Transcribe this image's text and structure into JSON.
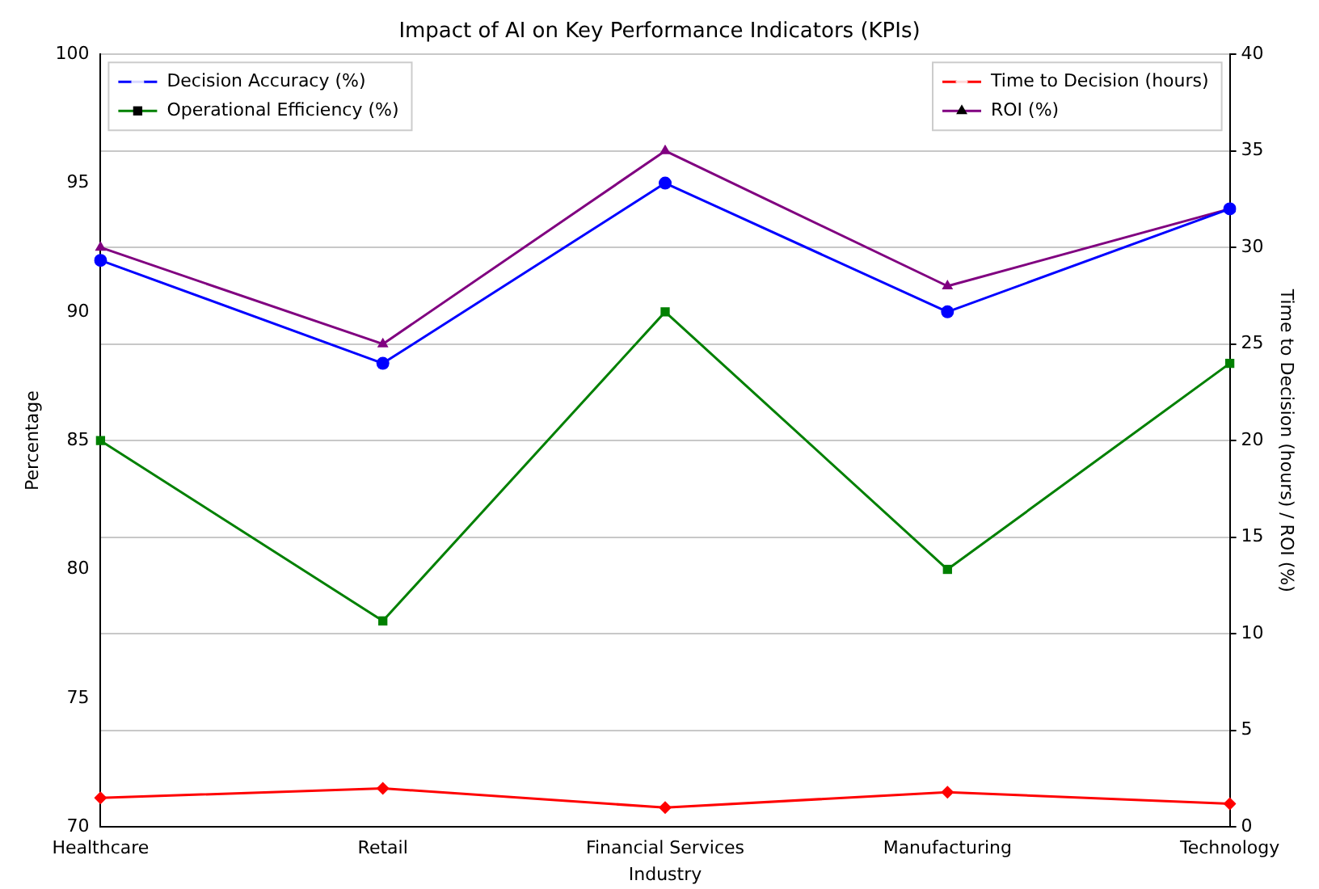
{
  "chart_data": {
    "type": "line",
    "title": "Impact of AI on Key Performance Indicators (KPIs)",
    "xlabel": "Industry",
    "ylabel": "Percentage",
    "y2label": "Time to Decision (hours) / ROI (%)",
    "categories": [
      "Healthcare",
      "Retail",
      "Financial Services",
      "Manufacturing",
      "Technology"
    ],
    "series": [
      {
        "name": "Decision Accuracy (%)",
        "color": "#0000ff",
        "marker": "circle",
        "values": [
          92,
          88,
          95,
          90,
          94
        ]
      },
      {
        "name": "Operational Efficiency (%)",
        "color": "#008000",
        "marker": "square",
        "values": [
          85,
          78,
          90,
          80,
          88
        ]
      },
      {
        "name": "Time to Decision (hours)",
        "color": "#ff0000",
        "marker": "diamond",
        "axis": "y2",
        "values": [
          1.5,
          2,
          1,
          1.8,
          1.2
        ]
      },
      {
        "name": "ROI (%)",
        "color": "#800080",
        "marker": "triangle",
        "axis": "y2",
        "values": [
          30,
          25,
          35,
          28,
          32
        ]
      }
    ],
    "ylim": [
      70,
      100
    ],
    "yticks": [
      70,
      75,
      80,
      85,
      90,
      95,
      100
    ],
    "y2lim": [
      0,
      40
    ],
    "y2ticks": [
      0,
      5,
      10,
      15,
      20,
      25,
      30,
      35,
      40
    ],
    "grid": "y2",
    "legend": "top",
    "line_style": "solid"
  }
}
